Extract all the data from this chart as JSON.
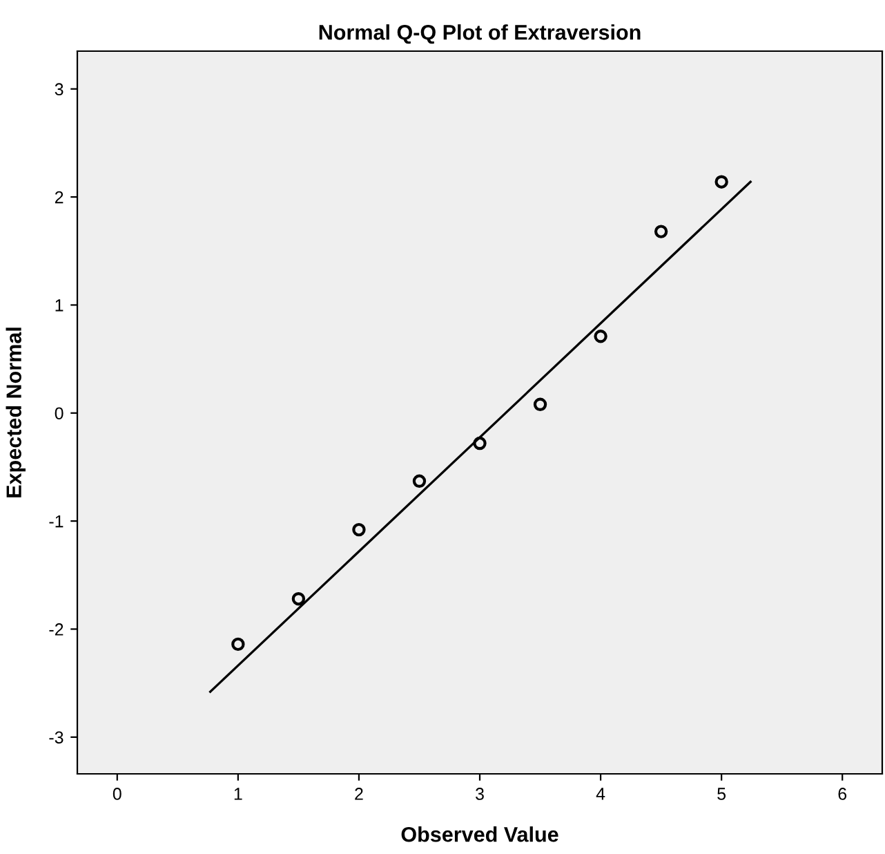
{
  "chart_data": {
    "type": "scatter",
    "title": "Normal Q-Q Plot of Extraversion",
    "xlabel": "Observed Value",
    "ylabel": "Expected Normal",
    "series": [
      {
        "color": "#000000",
        "x": [
          1,
          1.5,
          2,
          2.5,
          3,
          3.5,
          4,
          4.5,
          5
        ],
        "values": [
          -2.14,
          -1.72,
          -1.08,
          -0.63,
          -0.28,
          0.08,
          0.71,
          1.68,
          2.14
        ]
      },
      {
        "type": "line",
        "color": "#000000",
        "x": [
          0.77,
          5.24
        ],
        "values": [
          -2.58,
          2.14
        ]
      }
    ],
    "xlim": [
      -0.33,
      6.33
    ],
    "ylim": [
      -3.34,
      3.35
    ],
    "xticks": [
      0,
      1,
      2,
      3,
      4,
      5,
      6
    ],
    "yticks": [
      -3,
      -2,
      -1,
      0,
      1,
      2,
      3
    ],
    "grid": false,
    "legend": false
  }
}
